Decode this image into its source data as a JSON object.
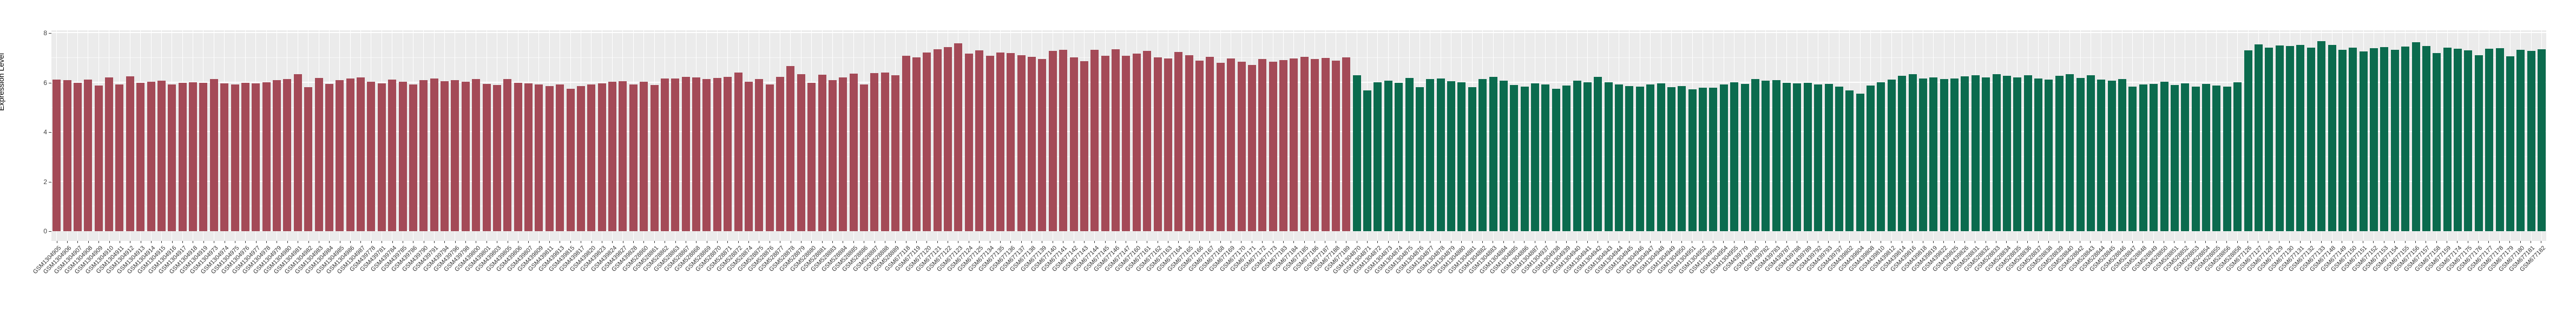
{
  "chart_data": {
    "type": "bar",
    "title": "",
    "xlabel": "",
    "ylabel": "Expression Level",
    "ylim": [
      0,
      8
    ],
    "yticks": [
      0,
      2,
      4,
      6,
      8
    ],
    "yticks_minor": [
      1,
      3,
      5,
      7
    ],
    "grid": "white major+minor horizontal lines and per-category vertical lines on grey panel",
    "legend": "none",
    "panel_bg": "#ebebeb",
    "split_index": 124,
    "groups": [
      {
        "name": "condition-1-red",
        "color": "#a44a57",
        "count": 124
      },
      {
        "name": "condition-2-green",
        "color": "#0b6b4e",
        "count": 114
      }
    ],
    "labels": [
      "GSM1304905",
      "GSM1304906",
      "GSM1304907",
      "GSM1304908",
      "GSM1304909",
      "GSM1304910",
      "GSM1304911",
      "GSM1304912",
      "GSM1304913",
      "GSM1304914",
      "GSM1304915",
      "GSM1304916",
      "GSM1304917",
      "GSM1304918",
      "GSM1304919",
      "GSM1304973",
      "GSM1304974",
      "GSM1304975",
      "GSM1304976",
      "GSM1304977",
      "GSM1304978",
      "GSM1304979",
      "GSM1304980",
      "GSM1304981",
      "GSM1304982",
      "GSM1304983",
      "GSM1304984",
      "GSM1304985",
      "GSM1304986",
      "GSM1304987",
      "GSM439778",
      "GSM439781",
      "GSM439784",
      "GSM439785",
      "GSM439786",
      "GSM439790",
      "GSM439791",
      "GSM439794",
      "GSM439796",
      "GSM439798",
      "GSM439800",
      "GSM439801",
      "GSM439803",
      "GSM439805",
      "GSM439806",
      "GSM439807",
      "GSM439809",
      "GSM439811",
      "GSM439813",
      "GSM439815",
      "GSM439817",
      "GSM439820",
      "GSM439823",
      "GSM439824",
      "GSM439827",
      "GSM439828",
      "GSM528860",
      "GSM528861",
      "GSM528862",
      "GSM528863",
      "GSM528867",
      "GSM528868",
      "GSM528869",
      "GSM528870",
      "GSM528871",
      "GSM528872",
      "GSM528874",
      "GSM528875",
      "GSM528876",
      "GSM528877",
      "GSM528878",
      "GSM528879",
      "GSM528880",
      "GSM528881",
      "GSM528883",
      "GSM528884",
      "GSM528885",
      "GSM528886",
      "GSM528887",
      "GSM528888",
      "GSM528889",
      "GSM677118",
      "GSM677119",
      "GSM677120",
      "GSM677121",
      "GSM677122",
      "GSM677123",
      "GSM677124",
      "GSM677125",
      "GSM677134",
      "GSM677135",
      "GSM677136",
      "GSM677137",
      "GSM677138",
      "GSM677139",
      "GSM677140",
      "GSM677141",
      "GSM677142",
      "GSM677143",
      "GSM677144",
      "GSM677145",
      "GSM677146",
      "GSM677147",
      "GSM677160",
      "GSM677161",
      "GSM677162",
      "GSM677163",
      "GSM677164",
      "GSM677165",
      "GSM677166",
      "GSM677167",
      "GSM677168",
      "GSM677169",
      "GSM677170",
      "GSM677171",
      "GSM677172",
      "GSM677173",
      "GSM677183",
      "GSM677184",
      "GSM677185",
      "GSM677186",
      "GSM677187",
      "GSM677188",
      "GSM677189",
      "GSM1304870",
      "GSM1304871",
      "GSM1304872",
      "GSM1304873",
      "GSM1304874",
      "GSM1304875",
      "GSM1304876",
      "GSM1304877",
      "GSM1304878",
      "GSM1304879",
      "GSM1304880",
      "GSM1304881",
      "GSM1304882",
      "GSM1304883",
      "GSM1304884",
      "GSM1304885",
      "GSM1304886",
      "GSM1304887",
      "GSM1304937",
      "GSM1304938",
      "GSM1304939",
      "GSM1304940",
      "GSM1304941",
      "GSM1304942",
      "GSM1304943",
      "GSM1304944",
      "GSM1304945",
      "GSM1304946",
      "GSM1304947",
      "GSM1304948",
      "GSM1304949",
      "GSM1304950",
      "GSM1304951",
      "GSM1304952",
      "GSM1304953",
      "GSM1304954",
      "GSM1304955",
      "GSM439779",
      "GSM439780",
      "GSM439782",
      "GSM439783",
      "GSM439787",
      "GSM439788",
      "GSM439789",
      "GSM439792",
      "GSM439793",
      "GSM439797",
      "GSM439802",
      "GSM439804",
      "GSM439808",
      "GSM439810",
      "GSM439812",
      "GSM439814",
      "GSM439816",
      "GSM439818",
      "GSM439819",
      "GSM439822",
      "GSM439825",
      "GSM439826",
      "GSM528831",
      "GSM528832",
      "GSM528833",
      "GSM528834",
      "GSM528835",
      "GSM528836",
      "GSM528837",
      "GSM528838",
      "GSM528839",
      "GSM528840",
      "GSM528842",
      "GSM528843",
      "GSM528844",
      "GSM528845",
      "GSM528846",
      "GSM528847",
      "GSM528848",
      "GSM528849",
      "GSM528850",
      "GSM528851",
      "GSM528852",
      "GSM528853",
      "GSM528854",
      "GSM528855",
      "GSM528856",
      "GSM528858",
      "GSM677126",
      "GSM677127",
      "GSM677128",
      "GSM677129",
      "GSM677130",
      "GSM677131",
      "GSM677132",
      "GSM677133",
      "GSM677148",
      "GSM677149",
      "GSM677150",
      "GSM677151",
      "GSM677152",
      "GSM677153",
      "GSM677154",
      "GSM677155",
      "GSM677156",
      "GSM677157",
      "GSM677158",
      "GSM677159",
      "GSM677174",
      "GSM677175",
      "GSM677176",
      "GSM677177",
      "GSM677178",
      "GSM677179",
      "GSM677180",
      "GSM677181",
      "GSM677182"
    ],
    "values": [
      6.12,
      6.1,
      6.0,
      6.12,
      5.88,
      6.22,
      5.93,
      6.25,
      6.0,
      6.04,
      6.08,
      5.93,
      6.0,
      6.02,
      6.0,
      6.15,
      5.97,
      5.93,
      6.0,
      5.98,
      6.02,
      6.1,
      6.15,
      6.35,
      5.82,
      6.2,
      5.95,
      6.1,
      6.18,
      6.22,
      6.05,
      5.97,
      6.12,
      6.03,
      5.93,
      6.1,
      6.18,
      6.06,
      6.1,
      6.04,
      6.16,
      5.95,
      5.9,
      6.14,
      6.0,
      5.98,
      5.93,
      5.87,
      5.93,
      5.75,
      5.86,
      5.93,
      5.98,
      6.03,
      6.07,
      5.93,
      6.05,
      5.9,
      6.18,
      6.18,
      6.23,
      6.21,
      6.16,
      6.19,
      6.23,
      6.41,
      6.03,
      6.14,
      5.93,
      6.23,
      6.68,
      6.34,
      6.0,
      6.32,
      6.1,
      6.22,
      6.36,
      5.93,
      6.39,
      6.41,
      6.3,
      7.08,
      7.02,
      7.22,
      7.35,
      7.45,
      7.6,
      7.18,
      7.3,
      7.1,
      7.22,
      7.2,
      7.12,
      7.05,
      6.95,
      7.28,
      7.33,
      7.02,
      6.88,
      7.32,
      7.1,
      7.35,
      7.08,
      7.18,
      7.28,
      7.02,
      6.98,
      7.25,
      7.12,
      6.9,
      7.05,
      6.8,
      6.98,
      6.85,
      6.72,
      6.95,
      6.85,
      6.92,
      6.98,
      7.05,
      6.95,
      7.0,
      6.9,
      7.02,
      6.3,
      5.68,
      6.02,
      6.08,
      5.99,
      6.2,
      5.83,
      6.14,
      6.18,
      6.06,
      6.02,
      5.83,
      6.16,
      6.23,
      6.08,
      5.9,
      5.85,
      5.97,
      5.94,
      5.76,
      5.88,
      6.08,
      6.02,
      6.23,
      6.01,
      5.94,
      5.86,
      5.85,
      5.94,
      5.97,
      5.83,
      5.86,
      5.74,
      5.79,
      5.79,
      5.94,
      6.01,
      5.95,
      6.15,
      6.08,
      6.1,
      6.0,
      5.98,
      6.0,
      5.92,
      5.95,
      5.85,
      5.68,
      5.55,
      5.88,
      6.02,
      6.12,
      6.28,
      6.35,
      6.18,
      6.22,
      6.15,
      6.18,
      6.25,
      6.3,
      6.22,
      6.35,
      6.28,
      6.22,
      6.3,
      6.18,
      6.12,
      6.28,
      6.35,
      6.2,
      6.3,
      6.12,
      6.08,
      6.15,
      5.85,
      5.92,
      5.95,
      6.05,
      5.9,
      5.98,
      5.85,
      5.95,
      5.88,
      5.85,
      6.02,
      7.3,
      7.56,
      7.41,
      7.5,
      7.48,
      7.52,
      7.42,
      7.67,
      7.52,
      7.34,
      7.42,
      7.27,
      7.4,
      7.45,
      7.32,
      7.47,
      7.63,
      7.48,
      7.19,
      7.41,
      7.37,
      7.3,
      7.12,
      7.37,
      7.4,
      7.06,
      7.34,
      7.28,
      7.35
    ]
  }
}
